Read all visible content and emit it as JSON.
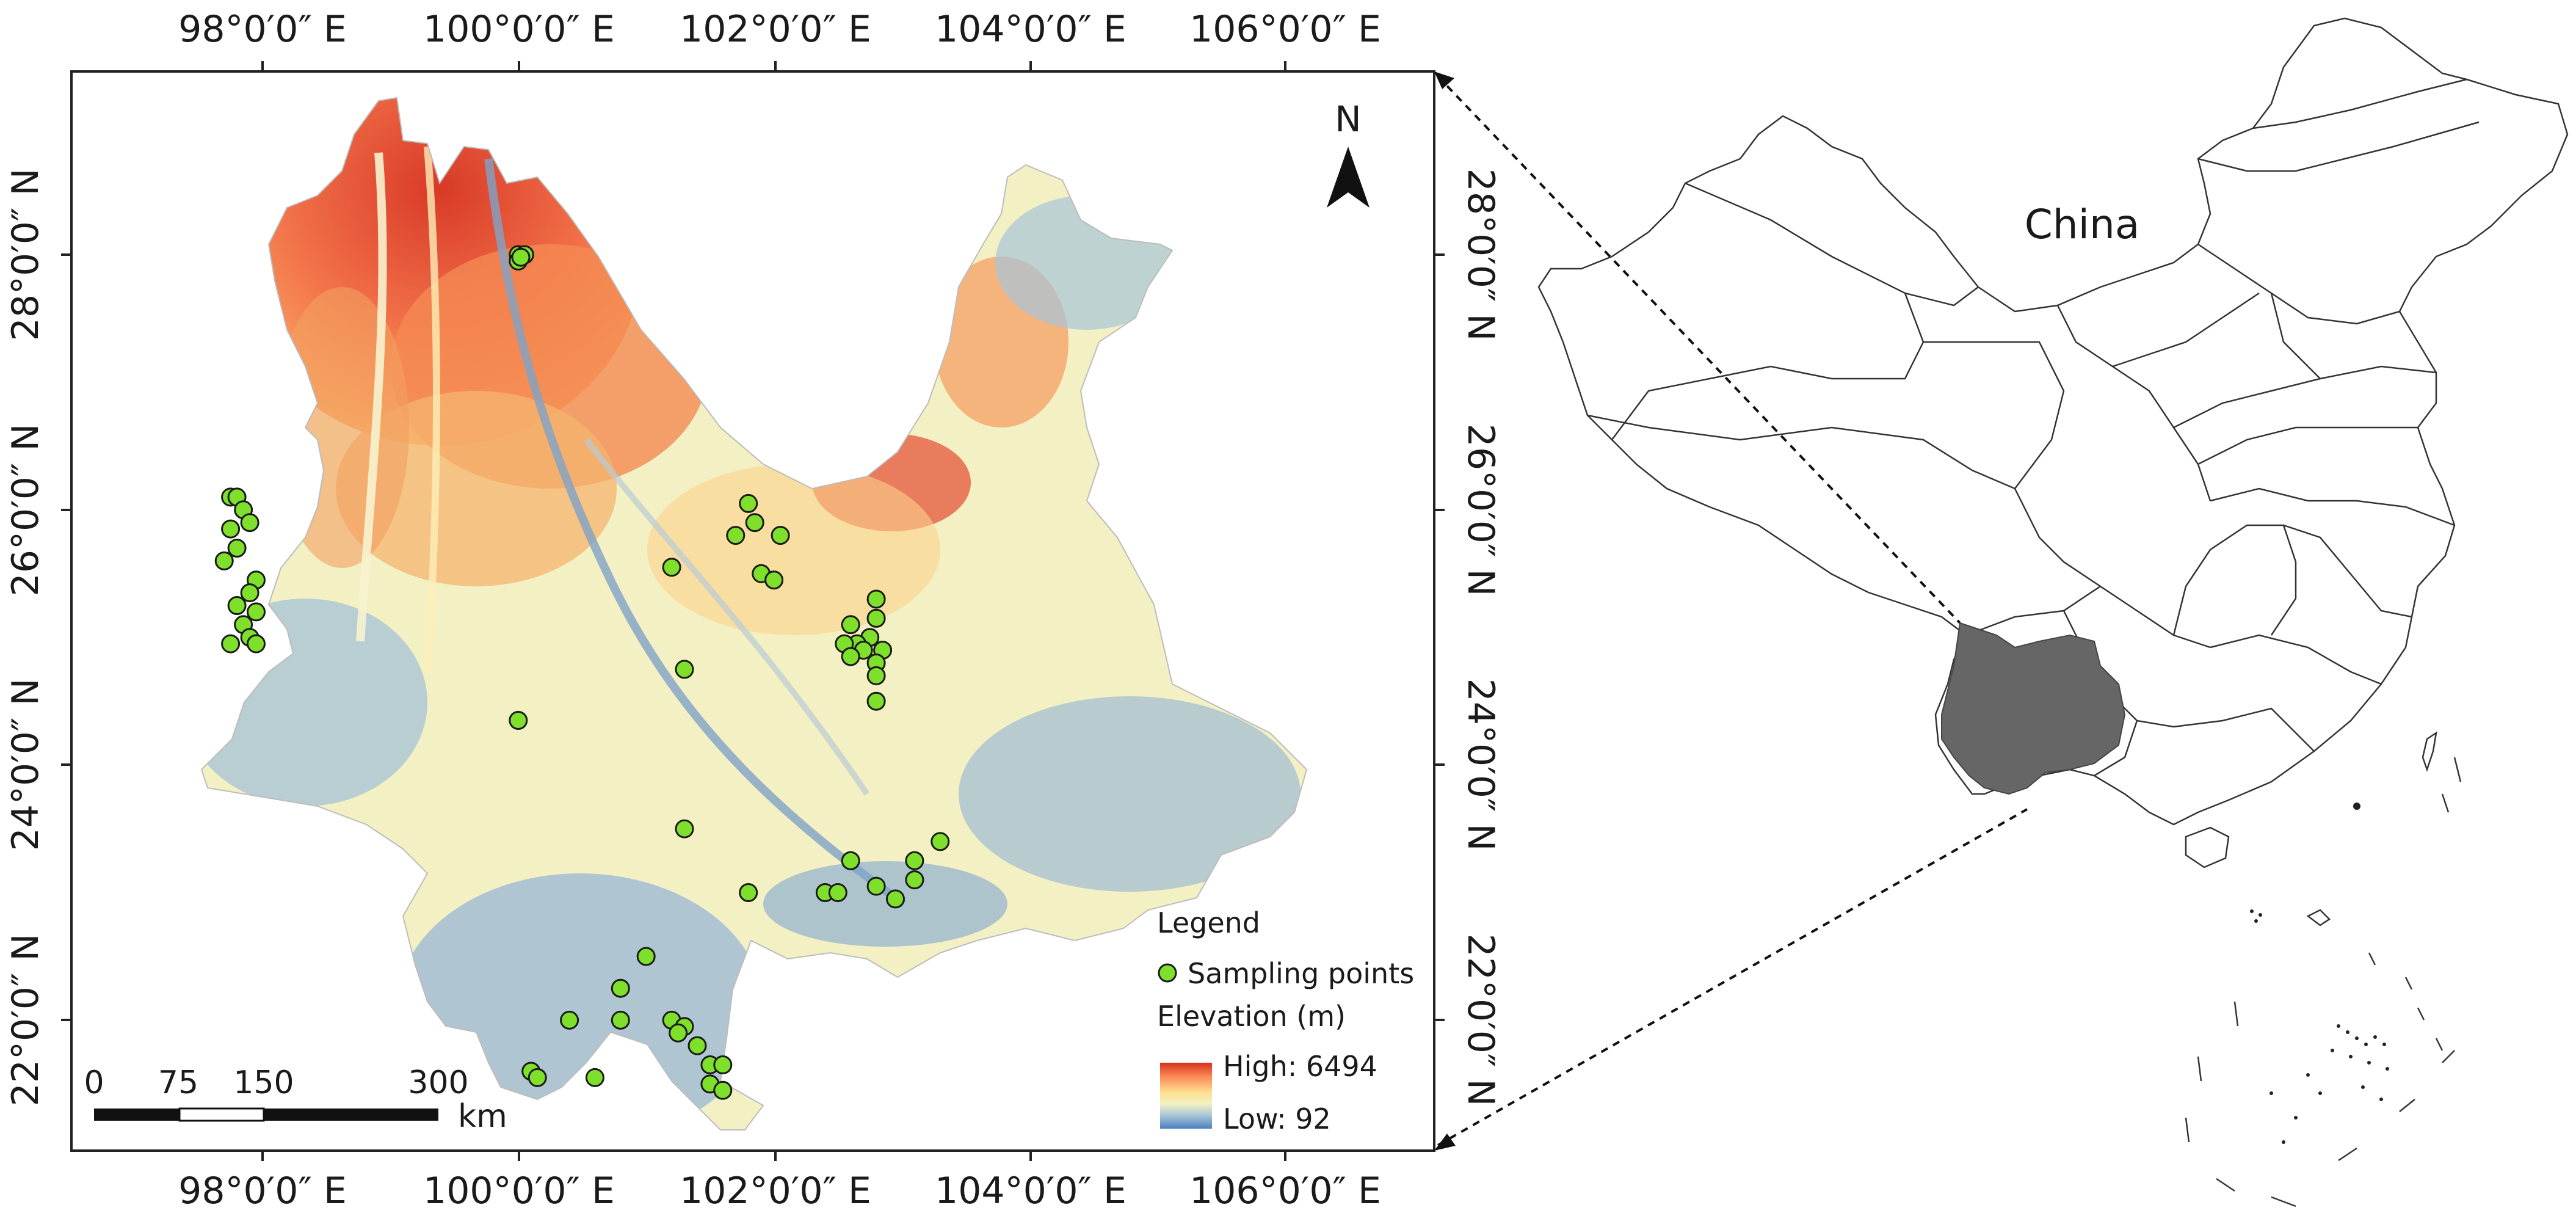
{
  "map": {
    "top_longitude_labels": [
      "98°0′0″ E",
      "100°0′0″ E",
      "102°0′0″ E",
      "104°0′0″ E",
      "106°0′0″ E"
    ],
    "bottom_longitude_labels": [
      "98°0′0″ E",
      "100°0′0″ E",
      "102°0′0″ E",
      "104°0′0″ E",
      "106°0′0″ E"
    ],
    "left_latitude_labels": [
      "28°0′0″ N",
      "26°0′0″ N",
      "24°0′0″ N",
      "22°0′0″ N"
    ],
    "right_latitude_labels": [
      "28°0′0″ N",
      "26°0′0″ N",
      "24°0′0″ N",
      "22°0′0″ N"
    ],
    "north_arrow": "N",
    "legend": {
      "title": "Legend",
      "points_label": "Sampling points",
      "elevation_title": "Elevation (m)",
      "high_label": "High: 6494",
      "low_label": "Low: 92",
      "point_color": "#7ee02a",
      "ramp_colors": [
        "#d7301f",
        "#fc8d59",
        "#fee090",
        "#f4f1c2",
        "#a9c6d6",
        "#4a7fbf"
      ]
    },
    "scale_bar": {
      "ticks": [
        "0",
        "75",
        "150",
        "300"
      ],
      "unit": "km"
    },
    "sampling_points": [
      [
        100.0,
        28.0
      ],
      [
        100.0,
        27.95
      ],
      [
        100.05,
        28.0
      ],
      [
        100.02,
        27.98
      ],
      [
        97.75,
        26.1
      ],
      [
        97.8,
        26.1
      ],
      [
        97.85,
        26.0
      ],
      [
        97.9,
        25.9
      ],
      [
        97.75,
        25.85
      ],
      [
        97.8,
        25.7
      ],
      [
        97.7,
        25.6
      ],
      [
        97.95,
        25.45
      ],
      [
        97.9,
        25.35
      ],
      [
        97.8,
        25.25
      ],
      [
        97.95,
        25.2
      ],
      [
        97.85,
        25.1
      ],
      [
        97.9,
        25.0
      ],
      [
        97.75,
        24.95
      ],
      [
        97.95,
        24.95
      ],
      [
        101.8,
        26.05
      ],
      [
        101.85,
        25.9
      ],
      [
        101.7,
        25.8
      ],
      [
        102.05,
        25.8
      ],
      [
        101.2,
        25.55
      ],
      [
        101.9,
        25.5
      ],
      [
        102.0,
        25.45
      ],
      [
        102.8,
        25.3
      ],
      [
        102.8,
        25.15
      ],
      [
        102.6,
        25.1
      ],
      [
        102.75,
        25.0
      ],
      [
        102.65,
        24.95
      ],
      [
        102.55,
        24.95
      ],
      [
        102.7,
        24.9
      ],
      [
        102.85,
        24.9
      ],
      [
        102.6,
        24.85
      ],
      [
        102.8,
        24.8
      ],
      [
        102.8,
        24.7
      ],
      [
        102.8,
        24.5
      ],
      [
        101.3,
        24.75
      ],
      [
        100.0,
        24.35
      ],
      [
        101.3,
        23.5
      ],
      [
        103.3,
        23.4
      ],
      [
        102.6,
        23.25
      ],
      [
        103.1,
        23.25
      ],
      [
        103.1,
        23.1
      ],
      [
        102.4,
        23.0
      ],
      [
        102.5,
        23.0
      ],
      [
        102.8,
        23.05
      ],
      [
        102.95,
        22.95
      ],
      [
        101.8,
        23.0
      ],
      [
        101.0,
        22.5
      ],
      [
        100.8,
        22.25
      ],
      [
        100.4,
        22.0
      ],
      [
        100.8,
        22.0
      ],
      [
        101.2,
        22.0
      ],
      [
        101.3,
        21.95
      ],
      [
        101.25,
        21.9
      ],
      [
        101.4,
        21.8
      ],
      [
        101.5,
        21.65
      ],
      [
        101.6,
        21.65
      ],
      [
        101.5,
        21.5
      ],
      [
        101.6,
        21.45
      ],
      [
        100.1,
        21.6
      ],
      [
        100.15,
        21.55
      ],
      [
        100.6,
        21.55
      ]
    ]
  },
  "inset": {
    "country_label": "China"
  }
}
